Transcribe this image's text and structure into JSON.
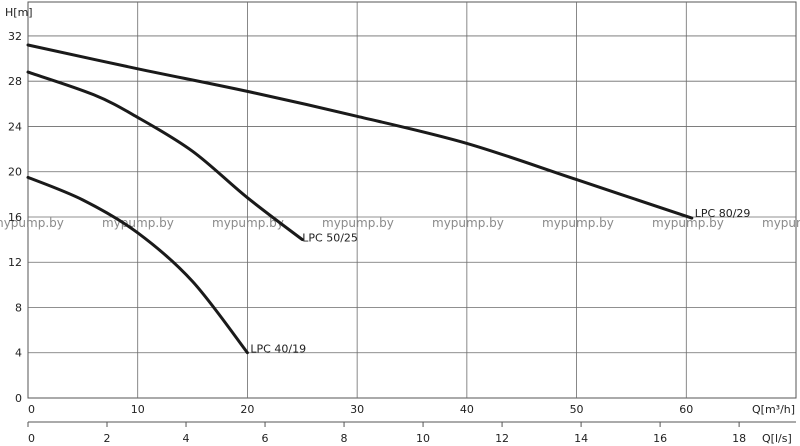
{
  "chart_data": {
    "type": "line",
    "title": "",
    "ylabel": "H[m]",
    "xlabel": "Q[m³/h]",
    "x2label": "Q[l/s]",
    "xlim": [
      0,
      70
    ],
    "ylim": [
      0,
      35
    ],
    "x2lim": [
      0,
      19.44
    ],
    "xticks": [
      0,
      10,
      20,
      30,
      40,
      50,
      60
    ],
    "yticks": [
      0,
      4,
      8,
      12,
      16,
      20,
      24,
      28,
      32
    ],
    "x2ticks": [
      0,
      2,
      4,
      6,
      8,
      10,
      12,
      14,
      16,
      18
    ],
    "grid": true,
    "legend": "none",
    "series": [
      {
        "name": "LPC 80/29",
        "x": [
          0,
          10,
          20,
          30,
          40,
          50,
          60.5
        ],
        "y": [
          31.2,
          29.1,
          27.1,
          24.9,
          22.5,
          19.3,
          15.9
        ]
      },
      {
        "name": "LPC 50/25",
        "x": [
          0,
          6,
          10,
          15,
          20,
          25
        ],
        "y": [
          28.8,
          26.8,
          24.8,
          21.8,
          17.7,
          14.0
        ]
      },
      {
        "name": "LPC 40/19",
        "x": [
          0,
          5,
          10,
          15,
          20
        ],
        "y": [
          19.5,
          17.5,
          14.6,
          10.3,
          4.0
        ]
      }
    ],
    "watermark": "mypump.by"
  }
}
